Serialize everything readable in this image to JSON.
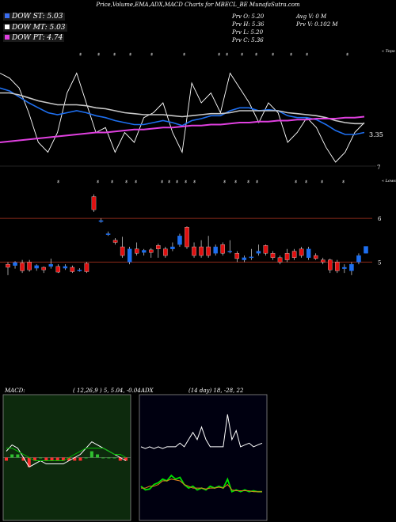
{
  "title": "Price,Volume,EMA,ADX,MACD Charts for MBECL_BE MunafaSutra.com",
  "legend": [
    {
      "label": "DOW ST: 5.03",
      "color": "#3a6df0",
      "bg": "#1a1a1a"
    },
    {
      "label": "DOW MT: 5.03",
      "color": "#ffffff",
      "bg": "#1a1a1a"
    },
    {
      "label": "DOW PT: 4.74",
      "color": "#e040e0",
      "bg": "#1a1a1a"
    }
  ],
  "info": {
    "prev_o": "Prv  O: 5.20",
    "prev_h": "Prv  H: 5.36",
    "prev_l": "Prv  L: 5.20",
    "prev_c": "Prv  C: 5.36",
    "avg_v": "Avg V: 0  M",
    "prev_v": "Prv  V: 0.102  M"
  },
  "colors": {
    "up": "#1e6ff0",
    "down": "#e01010",
    "wick": "#ffffff",
    "level": "#8b2a1a",
    "volume": "#3a6df0"
  },
  "chart_data": [
    {
      "type": "line",
      "panel": "price",
      "side_labels": [
        "Topo",
        "Lows"
      ],
      "annotation_marks": [
        "$",
        "$",
        "$",
        "$",
        "$",
        "$",
        "$",
        "$",
        "$",
        "$",
        "$",
        "$",
        "$",
        "$"
      ],
      "axis_labels": {
        "last_price": "3.35",
        "bottom": "7",
        "level_6": "6",
        "level_5": "5"
      },
      "y_levels": [
        6,
        5
      ],
      "series": [
        {
          "name": "",
          "color": "#ffffff",
          "values": [
            5.9,
            5.85,
            5.75,
            5.5,
            5.2,
            5.1,
            5.3,
            5.7,
            5.9,
            5.6,
            5.3,
            5.35,
            5.1,
            5.3,
            5.2,
            5.45,
            5.5,
            5.6,
            5.3,
            5.1,
            5.8,
            5.6,
            5.7,
            5.5,
            5.9,
            5.75,
            5.6,
            5.4,
            5.6,
            5.5,
            5.2,
            5.3,
            5.45,
            5.35,
            5.15,
            5.0,
            5.1,
            5.3,
            5.4
          ]
        },
        {
          "name": "",
          "color": "#1e6ff0",
          "values": [
            5.75,
            5.72,
            5.66,
            5.6,
            5.55,
            5.5,
            5.48,
            5.5,
            5.52,
            5.5,
            5.47,
            5.45,
            5.42,
            5.4,
            5.38,
            5.38,
            5.4,
            5.42,
            5.4,
            5.37,
            5.42,
            5.44,
            5.47,
            5.47,
            5.52,
            5.55,
            5.55,
            5.52,
            5.53,
            5.52,
            5.47,
            5.45,
            5.45,
            5.43,
            5.38,
            5.32,
            5.28,
            5.28,
            5.3
          ]
        },
        {
          "name": "",
          "color": "#c8c8c8",
          "values": [
            5.7,
            5.7,
            5.68,
            5.65,
            5.62,
            5.6,
            5.58,
            5.58,
            5.58,
            5.57,
            5.55,
            5.54,
            5.52,
            5.5,
            5.49,
            5.48,
            5.48,
            5.48,
            5.47,
            5.46,
            5.47,
            5.48,
            5.49,
            5.49,
            5.5,
            5.52,
            5.52,
            5.52,
            5.52,
            5.52,
            5.5,
            5.49,
            5.48,
            5.47,
            5.45,
            5.42,
            5.4,
            5.39,
            5.39
          ]
        },
        {
          "name": "",
          "color": "#e040e0",
          "values": [
            5.2,
            5.21,
            5.22,
            5.23,
            5.24,
            5.25,
            5.26,
            5.27,
            5.28,
            5.29,
            5.3,
            5.3,
            5.31,
            5.32,
            5.33,
            5.33,
            5.34,
            5.35,
            5.35,
            5.36,
            5.37,
            5.37,
            5.38,
            5.38,
            5.39,
            5.4,
            5.4,
            5.41,
            5.41,
            5.42,
            5.42,
            5.43,
            5.43,
            5.44,
            5.44,
            5.44,
            5.45,
            5.45,
            5.46
          ]
        }
      ]
    },
    {
      "type": "bar",
      "panel": "candles",
      "candles": [
        {
          "open": 4.95,
          "close": 4.88,
          "high": 5.0,
          "low": 4.7
        },
        {
          "open": 4.92,
          "close": 4.99,
          "high": 5.02,
          "low": 4.85
        },
        {
          "open": 4.98,
          "close": 4.8,
          "high": 5.05,
          "low": 4.75
        },
        {
          "open": 5.0,
          "close": 4.82,
          "high": 5.05,
          "low": 4.78
        },
        {
          "open": 4.86,
          "close": 4.92,
          "high": 4.95,
          "low": 4.8
        },
        {
          "open": 4.88,
          "close": 4.82,
          "high": 4.9,
          "low": 4.75
        },
        {
          "open": 4.9,
          "close": 4.95,
          "high": 5.08,
          "low": 4.85
        },
        {
          "open": 4.9,
          "close": 4.77,
          "high": 4.95,
          "low": 4.75
        },
        {
          "open": 4.86,
          "close": 4.9,
          "high": 4.95,
          "low": 4.82
        },
        {
          "open": 4.88,
          "close": 4.78,
          "high": 4.92,
          "low": 4.75
        },
        {
          "open": 4.82,
          "close": 4.82,
          "high": 4.86,
          "low": 4.78
        },
        {
          "open": 4.97,
          "close": 4.78,
          "high": 5.0,
          "low": 4.75
        },
        {
          "open": 6.5,
          "close": 6.2,
          "high": 6.55,
          "low": 6.15
        },
        {
          "open": 5.95,
          "close": 5.95,
          "high": 6.0,
          "low": 5.9
        },
        {
          "open": 5.65,
          "close": 5.65,
          "high": 5.7,
          "low": 5.6
        },
        {
          "open": 5.5,
          "close": 5.45,
          "high": 5.55,
          "low": 5.4
        },
        {
          "open": 5.35,
          "close": 5.15,
          "high": 5.58,
          "low": 5.1
        },
        {
          "open": 5.0,
          "close": 5.3,
          "high": 5.35,
          "low": 4.95
        },
        {
          "open": 5.3,
          "close": 5.2,
          "high": 5.45,
          "low": 5.15
        },
        {
          "open": 5.22,
          "close": 5.27,
          "high": 5.3,
          "low": 5.15
        },
        {
          "open": 5.28,
          "close": 5.22,
          "high": 5.32,
          "low": 5.1
        },
        {
          "open": 5.38,
          "close": 5.3,
          "high": 5.42,
          "low": 5.1
        },
        {
          "open": 5.3,
          "close": 5.15,
          "high": 5.35,
          "low": 5.1
        },
        {
          "open": 5.3,
          "close": 5.35,
          "high": 5.45,
          "low": 5.25
        },
        {
          "open": 5.4,
          "close": 5.6,
          "high": 5.65,
          "low": 5.35
        },
        {
          "open": 5.8,
          "close": 5.35,
          "high": 5.82,
          "low": 5.3
        },
        {
          "open": 5.35,
          "close": 5.15,
          "high": 5.45,
          "low": 5.1
        },
        {
          "open": 5.35,
          "close": 5.15,
          "high": 5.5,
          "low": 5.1
        },
        {
          "open": 5.35,
          "close": 5.15,
          "high": 5.6,
          "low": 5.1
        },
        {
          "open": 5.2,
          "close": 5.35,
          "high": 5.4,
          "low": 5.15
        },
        {
          "open": 5.4,
          "close": 5.2,
          "high": 5.45,
          "low": 5.15
        },
        {
          "open": 5.25,
          "close": 5.25,
          "high": 5.5,
          "low": 5.2
        },
        {
          "open": 5.2,
          "close": 5.08,
          "high": 5.25,
          "low": 5.0
        },
        {
          "open": 5.05,
          "close": 5.1,
          "high": 5.15,
          "low": 5.0
        },
        {
          "open": 5.1,
          "close": 5.12,
          "high": 5.3,
          "low": 5.05
        },
        {
          "open": 5.2,
          "close": 5.25,
          "high": 5.4,
          "low": 5.15
        },
        {
          "open": 5.38,
          "close": 5.2,
          "high": 5.4,
          "low": 5.15
        },
        {
          "open": 5.2,
          "close": 5.1,
          "high": 5.25,
          "low": 5.05
        },
        {
          "open": 5.1,
          "close": 5.0,
          "high": 5.15,
          "low": 4.95
        },
        {
          "open": 5.2,
          "close": 5.05,
          "high": 5.3,
          "low": 5.0
        },
        {
          "open": 5.25,
          "close": 5.1,
          "high": 5.3,
          "low": 5.05
        },
        {
          "open": 5.3,
          "close": 5.15,
          "high": 5.35,
          "low": 5.1
        },
        {
          "open": 5.1,
          "close": 5.3,
          "high": 5.35,
          "low": 5.05
        },
        {
          "open": 5.15,
          "close": 5.08,
          "high": 5.2,
          "low": 5.05
        },
        {
          "open": 5.05,
          "close": 5.0,
          "high": 5.1,
          "low": 4.95
        },
        {
          "open": 5.05,
          "close": 4.82,
          "high": 5.08,
          "low": 4.75
        },
        {
          "open": 5.0,
          "close": 4.8,
          "high": 5.05,
          "low": 4.75
        },
        {
          "open": 4.85,
          "close": 4.88,
          "high": 4.95,
          "low": 4.75
        },
        {
          "open": 4.8,
          "close": 4.95,
          "high": 5.0,
          "low": 4.7
        },
        {
          "open": 5.0,
          "close": 5.15,
          "high": 5.2,
          "low": 4.95
        },
        {
          "open": 5.2,
          "close": 5.36,
          "high": 5.36,
          "low": 5.2
        }
      ]
    },
    {
      "type": "line",
      "panel": "macd",
      "title": "MACD:",
      "value_text": "( 12,26,9 ) 5, 5.04, -0.04",
      "series": [
        {
          "name": "",
          "color": "#ffffff",
          "values": [
            0.02,
            0.04,
            0.03,
            0.0,
            -0.03,
            -0.02,
            -0.01,
            -0.02,
            -0.02,
            -0.02,
            -0.02,
            -0.01,
            0.0,
            0.01,
            0.03,
            0.05,
            0.04,
            0.03,
            0.02,
            0.01,
            0.0,
            -0.01
          ]
        },
        {
          "name": "",
          "color": "#00c000",
          "values": [
            0.03,
            0.03,
            0.02,
            0.01,
            0.0,
            -0.01,
            -0.01,
            -0.01,
            -0.01,
            -0.01,
            -0.01,
            0.0,
            0.01,
            0.02,
            0.03,
            0.03,
            0.03,
            0.03,
            0.02,
            0.01,
            0.01,
            0.0
          ]
        }
      ],
      "histogram": [
        -0.01,
        0.01,
        0.01,
        -0.01,
        -0.03,
        -0.01,
        0.0,
        -0.01,
        -0.01,
        -0.01,
        -0.01,
        -0.01,
        -0.01,
        -0.01,
        0.0,
        0.02,
        0.01,
        0.0,
        0.0,
        0.0,
        -0.01,
        -0.01
      ]
    },
    {
      "type": "line",
      "panel": "adx",
      "title": "ADX",
      "value_text": "(14  day) 18, -28, 22",
      "series": [
        {
          "name": "",
          "color": "#ffffff",
          "values": [
            22,
            20,
            22,
            20,
            22,
            20,
            22,
            22,
            22,
            26,
            22,
            30,
            38,
            30,
            44,
            30,
            22,
            22,
            22,
            22,
            58,
            30,
            40,
            22,
            24,
            26,
            22,
            24,
            26
          ]
        },
        {
          "name": "",
          "color": "#00e000",
          "values": [
            -22,
            -26,
            -25,
            -20,
            -18,
            -14,
            -16,
            -10,
            -14,
            -12,
            -20,
            -24,
            -22,
            -26,
            -24,
            -26,
            -22,
            -24,
            -22,
            -24,
            -14,
            -28,
            -26,
            -28,
            -26,
            -28,
            -27,
            -28,
            -28
          ]
        },
        {
          "name": "",
          "color": "#e08020",
          "values": [
            -24,
            -24,
            -22,
            -22,
            -20,
            -16,
            -16,
            -14,
            -15,
            -16,
            -20,
            -22,
            -24,
            -24,
            -24,
            -25,
            -24,
            -24,
            -23,
            -24,
            -20,
            -26,
            -27,
            -27,
            -27,
            -27,
            -28,
            -28,
            -28
          ]
        }
      ]
    }
  ]
}
